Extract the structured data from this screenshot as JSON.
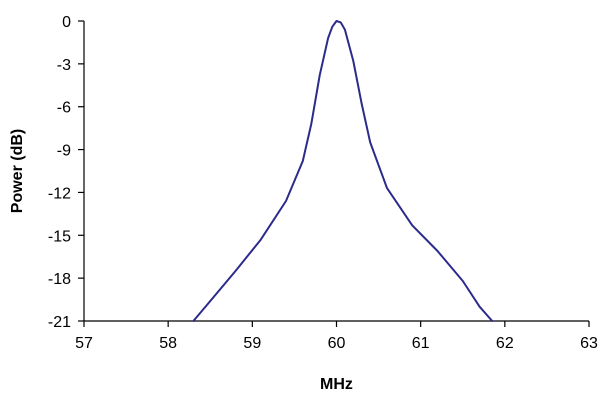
{
  "chart_data": {
    "type": "line",
    "title": "",
    "xlabel": "MHz",
    "ylabel": "Power (dB)",
    "xlim": [
      57,
      63
    ],
    "ylim": [
      -21,
      0
    ],
    "x_ticks": [
      57,
      58,
      59,
      60,
      61,
      62,
      63
    ],
    "y_ticks": [
      0,
      -3,
      -6,
      -9,
      -12,
      -15,
      -18,
      -21
    ],
    "x_tick_labels": [
      "57",
      "58",
      "59",
      "60",
      "61",
      "62",
      "63"
    ],
    "y_tick_labels": [
      "0",
      "-3",
      "-6",
      "-9",
      "-12",
      "-15",
      "-18",
      "-21"
    ],
    "grid": false,
    "legend": false,
    "series": [
      {
        "color": "#2b2b8c",
        "x": [
          58.3,
          58.5,
          58.8,
          59.1,
          59.4,
          59.6,
          59.7,
          59.8,
          59.9,
          59.95,
          60.0,
          60.05,
          60.1,
          60.2,
          60.3,
          60.4,
          60.6,
          60.9,
          61.2,
          61.5,
          61.7,
          61.85
        ],
        "y": [
          -21.0,
          -19.6,
          -17.5,
          -15.3,
          -12.6,
          -9.8,
          -7.2,
          -3.8,
          -1.2,
          -0.4,
          0.0,
          -0.1,
          -0.6,
          -2.8,
          -5.8,
          -8.5,
          -11.7,
          -14.3,
          -16.1,
          -18.2,
          -20.0,
          -21.0
        ]
      }
    ]
  }
}
